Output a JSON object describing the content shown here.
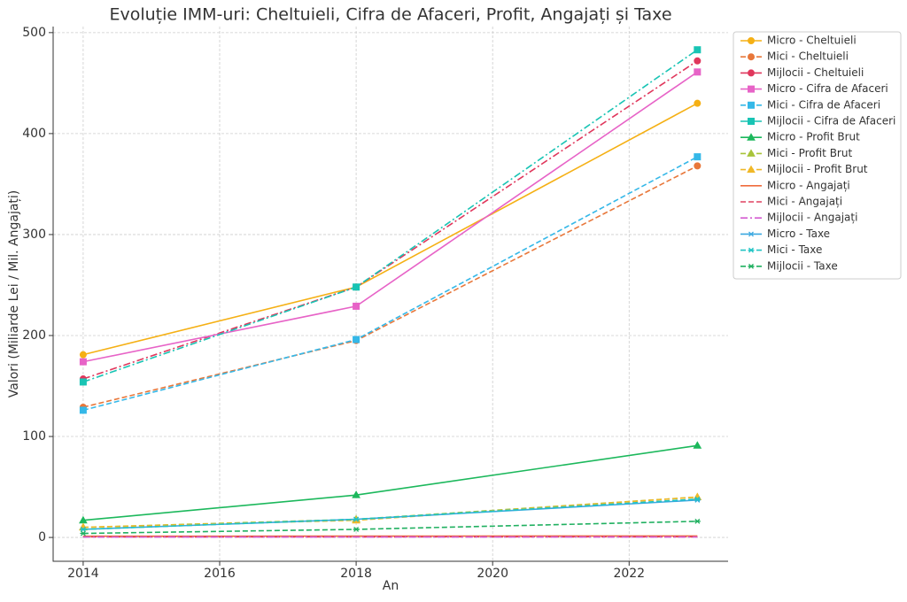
{
  "chart_data": {
    "type": "line",
    "title": "Evoluție IMM-uri: Cheltuieli, Cifra de Afaceri, Profit, Angajați și Taxe",
    "x_label": "An",
    "y_label": "Valori (Miliarde Lei / Mil. Angajați)",
    "x": [
      2014,
      2018,
      2023
    ],
    "xlim": [
      2013.56,
      2023.45
    ],
    "xticks": [
      2014,
      2016,
      2018,
      2020,
      2022
    ],
    "ylim": [
      -23.6,
      506
    ],
    "yticks": [
      0,
      100,
      200,
      300,
      400,
      500
    ],
    "grid": true,
    "legend": "outside-upper-right",
    "series": [
      {
        "name": "Micro - Cheltuieli",
        "color": "#f5b014",
        "linestyle": "solid",
        "marker": "circle",
        "values": [
          181,
          248,
          430
        ]
      },
      {
        "name": "Mici - Cheltuieli",
        "color": "#e8773a",
        "linestyle": "dashed",
        "marker": "circle",
        "values": [
          129,
          195,
          368
        ]
      },
      {
        "name": "Mijlocii - Cheltuieli",
        "color": "#e0375c",
        "linestyle": "dashdot",
        "marker": "circle",
        "values": [
          157,
          248,
          472
        ]
      },
      {
        "name": "Micro - Cifra de Afaceri",
        "color": "#e763c7",
        "linestyle": "solid",
        "marker": "square",
        "values": [
          174,
          229,
          461
        ]
      },
      {
        "name": "Mici - Cifra de Afaceri",
        "color": "#35b8e8",
        "linestyle": "dashed",
        "marker": "square",
        "values": [
          126,
          196,
          377
        ]
      },
      {
        "name": "Mijlocii - Cifra de Afaceri",
        "color": "#18c4b4",
        "linestyle": "dashdot",
        "marker": "square",
        "values": [
          154,
          248,
          483
        ]
      },
      {
        "name": "Micro - Profit Brut",
        "color": "#1cb85c",
        "linestyle": "solid",
        "marker": "triangle",
        "values": [
          17,
          42,
          91
        ]
      },
      {
        "name": "Mici - Profit Brut",
        "color": "#a8c43a",
        "linestyle": "dashed",
        "marker": "triangle",
        "values": [
          10,
          18,
          40
        ]
      },
      {
        "name": "Mijlocii - Profit Brut",
        "color": "#f0b828",
        "linestyle": "dashed",
        "marker": "triangle",
        "values": [
          10,
          17,
          40
        ]
      },
      {
        "name": "Micro - Angajați",
        "color": "#ef6c3c",
        "linestyle": "solid",
        "marker": "none",
        "values": [
          1.2,
          1.3,
          1.5
        ]
      },
      {
        "name": "Mici - Angajați",
        "color": "#e04060",
        "linestyle": "dashed",
        "marker": "none",
        "values": [
          0.5,
          0.6,
          0.7
        ]
      },
      {
        "name": "Mijlocii - Angajați",
        "color": "#d45ad0",
        "linestyle": "dashdot",
        "marker": "none",
        "values": [
          0.4,
          0.45,
          0.5
        ]
      },
      {
        "name": "Micro - Taxe",
        "color": "#3aa8e0",
        "linestyle": "solid",
        "marker": "star",
        "values": [
          8,
          18,
          37
        ]
      },
      {
        "name": "Mici - Taxe",
        "color": "#20c4c4",
        "linestyle": "dashed",
        "marker": "star",
        "values": [
          8,
          18,
          38
        ]
      },
      {
        "name": "Mijlocii - Taxe",
        "color": "#20b060",
        "linestyle": "dashed",
        "marker": "star",
        "values": [
          4,
          8,
          16
        ]
      }
    ]
  }
}
